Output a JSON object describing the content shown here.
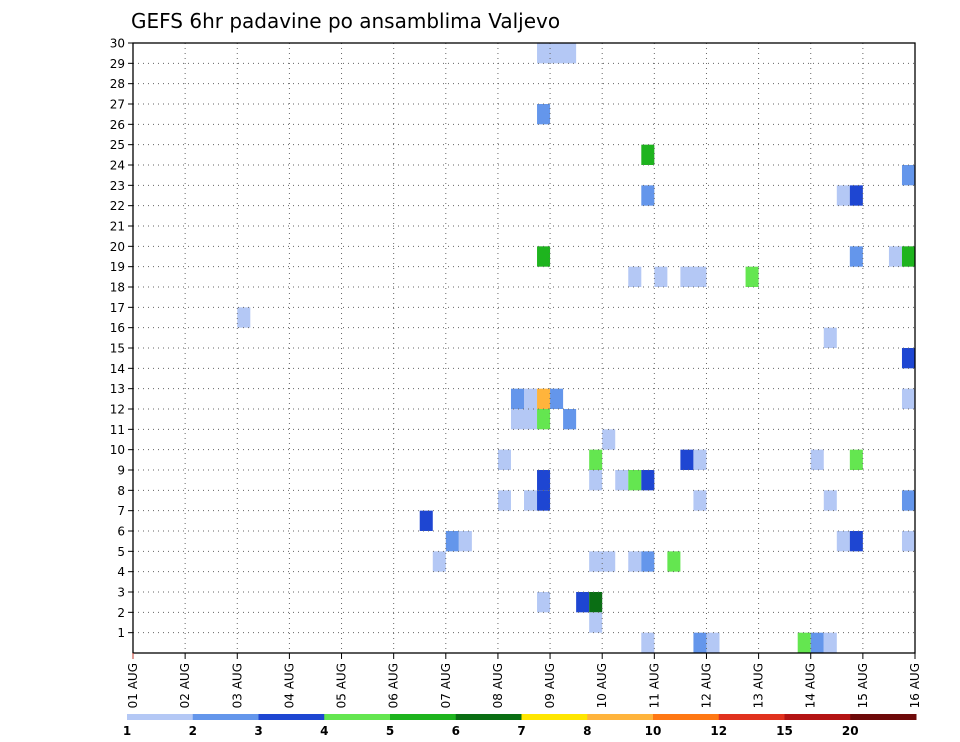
{
  "chart_data": {
    "type": "heatmap",
    "title": "GEFS 6hr padavine po ansamblima Valjevo",
    "xlabel": "",
    "ylabel": "",
    "x_tick_labels": [
      "01 AUG",
      "02 AUG",
      "03 AUG",
      "04 AUG",
      "05 AUG",
      "06 AUG",
      "07 AUG",
      "08 AUG",
      "09 AUG",
      "10 AUG",
      "11 AUG",
      "12 AUG",
      "13 AUG",
      "14 AUG",
      "15 AUG",
      "16 AUG"
    ],
    "y_tick_labels": [
      "1",
      "2",
      "3",
      "4",
      "5",
      "6",
      "7",
      "8",
      "9",
      "10",
      "11",
      "12",
      "13",
      "14",
      "15",
      "16",
      "17",
      "18",
      "19",
      "20",
      "21",
      "22",
      "23",
      "24",
      "25",
      "26",
      "27",
      "28",
      "29",
      "30"
    ],
    "xlim": [
      0,
      15
    ],
    "ylim": [
      0,
      30
    ],
    "grid": true,
    "color_scale": {
      "colors": [
        "#b4c8f5",
        "#6496eb",
        "#1e46d2",
        "#64e650",
        "#1eb41e",
        "#0a6e14",
        "#ffe600",
        "#ffb43c",
        "#ff7814",
        "#e1321e",
        "#b41414",
        "#6e0a0a"
      ],
      "labels": [
        "1",
        "2",
        "3",
        "4",
        "5",
        "6",
        "7",
        "8",
        "10",
        "12",
        "15",
        "20"
      ]
    },
    "cells": [
      {
        "x": 7.75,
        "y": 29.5,
        "w": 0.75,
        "v": 1
      },
      {
        "x": 7.75,
        "y": 26.5,
        "v": 2
      },
      {
        "x": 9.75,
        "y": 24.5,
        "v": 5
      },
      {
        "x": 14.75,
        "y": 23.5,
        "v": 2
      },
      {
        "x": 9.75,
        "y": 22.5,
        "v": 2
      },
      {
        "x": 13.5,
        "y": 22.5,
        "v": 1
      },
      {
        "x": 13.75,
        "y": 22.5,
        "v": 3
      },
      {
        "x": 7.75,
        "y": 19.5,
        "v": 5
      },
      {
        "x": 13.75,
        "y": 19.5,
        "v": 2
      },
      {
        "x": 14.5,
        "y": 19.5,
        "v": 1
      },
      {
        "x": 14.75,
        "y": 19.5,
        "v": 5
      },
      {
        "x": 9.5,
        "y": 18.5,
        "v": 1
      },
      {
        "x": 10.0,
        "y": 18.5,
        "v": 1
      },
      {
        "x": 10.5,
        "y": 18.5,
        "w": 0.5,
        "v": 1
      },
      {
        "x": 11.75,
        "y": 18.5,
        "v": 4
      },
      {
        "x": 2.0,
        "y": 16.5,
        "v": 1
      },
      {
        "x": 13.25,
        "y": 15.5,
        "v": 1
      },
      {
        "x": 14.75,
        "y": 14.5,
        "v": 3
      },
      {
        "x": 7.25,
        "y": 12.5,
        "v": 2
      },
      {
        "x": 7.5,
        "y": 12.5,
        "v": 1
      },
      {
        "x": 7.75,
        "y": 12.5,
        "v": 8
      },
      {
        "x": 8.0,
        "y": 12.5,
        "v": 2
      },
      {
        "x": 14.75,
        "y": 12.5,
        "v": 1
      },
      {
        "x": 7.25,
        "y": 11.5,
        "w": 0.5,
        "v": 1
      },
      {
        "x": 7.75,
        "y": 11.5,
        "v": 4
      },
      {
        "x": 8.25,
        "y": 11.5,
        "v": 2
      },
      {
        "x": 9.0,
        "y": 10.5,
        "v": 1
      },
      {
        "x": 7.0,
        "y": 9.5,
        "v": 1
      },
      {
        "x": 8.75,
        "y": 9.5,
        "v": 4
      },
      {
        "x": 10.5,
        "y": 9.5,
        "v": 3
      },
      {
        "x": 10.75,
        "y": 9.5,
        "v": 1
      },
      {
        "x": 13.0,
        "y": 9.5,
        "v": 1
      },
      {
        "x": 13.75,
        "y": 9.5,
        "v": 4
      },
      {
        "x": 7.75,
        "y": 8.5,
        "v": 3
      },
      {
        "x": 8.75,
        "y": 8.5,
        "v": 1
      },
      {
        "x": 9.25,
        "y": 8.5,
        "v": 1
      },
      {
        "x": 9.5,
        "y": 8.5,
        "v": 4
      },
      {
        "x": 9.75,
        "y": 8.5,
        "v": 3
      },
      {
        "x": 7.0,
        "y": 7.5,
        "v": 1
      },
      {
        "x": 7.5,
        "y": 7.5,
        "v": 1
      },
      {
        "x": 7.75,
        "y": 7.5,
        "v": 3
      },
      {
        "x": 10.75,
        "y": 7.5,
        "v": 1
      },
      {
        "x": 13.25,
        "y": 7.5,
        "v": 1
      },
      {
        "x": 14.75,
        "y": 7.5,
        "v": 2
      },
      {
        "x": 5.5,
        "y": 6.5,
        "v": 3
      },
      {
        "x": 6.0,
        "y": 5.5,
        "v": 2
      },
      {
        "x": 6.25,
        "y": 5.5,
        "v": 1
      },
      {
        "x": 13.5,
        "y": 5.5,
        "v": 1
      },
      {
        "x": 13.75,
        "y": 5.5,
        "v": 3
      },
      {
        "x": 14.75,
        "y": 5.5,
        "v": 1
      },
      {
        "x": 5.75,
        "y": 4.5,
        "v": 1
      },
      {
        "x": 8.75,
        "y": 4.5,
        "w": 0.5,
        "v": 1
      },
      {
        "x": 9.5,
        "y": 4.5,
        "v": 1
      },
      {
        "x": 9.75,
        "y": 4.5,
        "v": 2
      },
      {
        "x": 10.25,
        "y": 4.5,
        "v": 4
      },
      {
        "x": 7.75,
        "y": 2.5,
        "v": 1
      },
      {
        "x": 8.5,
        "y": 2.5,
        "v": 3
      },
      {
        "x": 8.75,
        "y": 2.5,
        "v": 6
      },
      {
        "x": 8.75,
        "y": 1.5,
        "v": 1
      },
      {
        "x": 9.75,
        "y": 0.5,
        "v": 1
      },
      {
        "x": 10.75,
        "y": 0.5,
        "v": 2
      },
      {
        "x": 11.0,
        "y": 0.5,
        "v": 1
      },
      {
        "x": 12.75,
        "y": 0.5,
        "v": 4
      },
      {
        "x": 13.0,
        "y": 0.5,
        "v": 2
      },
      {
        "x": 13.25,
        "y": 0.5,
        "v": 1
      }
    ]
  }
}
